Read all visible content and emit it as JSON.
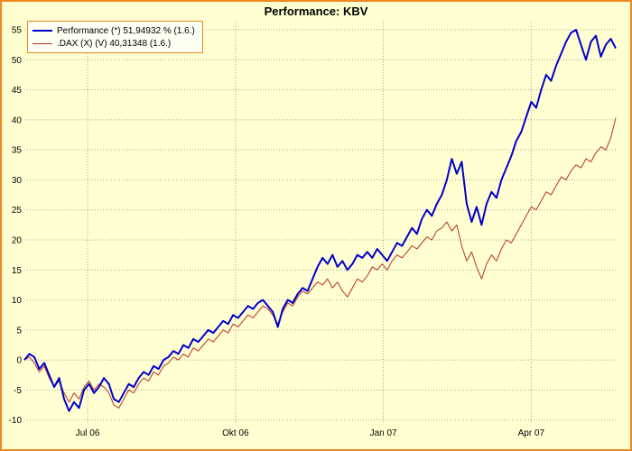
{
  "title": "Performance: KBV",
  "colors": {
    "background": "#FFFFD2",
    "border_orange": "#EE8822",
    "grid_gray": "#A0A0A0",
    "performance_blue": "#0000CC",
    "dax_red": "#BB3322",
    "legend_background": "#FFFFF4",
    "text_black": "#000000"
  },
  "legend": {
    "items": [
      {
        "label": "Performance (*) 51,94932 % (1.6.)",
        "color": "#0000CC",
        "thickness": 2
      },
      {
        "label": ".DAX (X) (V) 40,31348 (1.6.)",
        "color": "#BB3322",
        "thickness": 1
      }
    ]
  },
  "chart_data": {
    "type": "line",
    "title": "Performance: KBV",
    "xlabel": "",
    "ylabel": "",
    "grid": true,
    "legend_position": "top-left",
    "ylim": [
      -10.5,
      56.5
    ],
    "y_ticks": [
      55,
      50,
      45,
      40,
      35,
      30,
      25,
      20,
      15,
      10,
      5,
      0,
      -5,
      -10
    ],
    "x_tick_labels": [
      "Jul 06",
      "Okt 06",
      "Jan 07",
      "Apr 07"
    ],
    "x_tick_positions": [
      0.107,
      0.357,
      0.607,
      0.857
    ],
    "series": [
      {
        "name": "Performance",
        "end_value_label": "51,94932 % (1.6.)",
        "color": "#0000CC",
        "width": 2,
        "values": [
          0,
          1,
          0.5,
          -1.5,
          -0.5,
          -2.5,
          -4.5,
          -3,
          -6.5,
          -8.5,
          -7,
          -8,
          -5,
          -4,
          -5.5,
          -4.5,
          -3,
          -4,
          -6.5,
          -7,
          -5.5,
          -4,
          -4.5,
          -3,
          -2,
          -2.5,
          -1,
          -1.5,
          0,
          0.5,
          1.5,
          1,
          2.5,
          2,
          3.5,
          3,
          4,
          5,
          4.5,
          5.5,
          6.5,
          6,
          7.5,
          7,
          8,
          9,
          8.5,
          9.5,
          10,
          9,
          8,
          5.5,
          8.5,
          10,
          9.5,
          11,
          12,
          11.5,
          13.5,
          15.5,
          17,
          16,
          17.5,
          15.5,
          16.5,
          15,
          16,
          17.5,
          17,
          18,
          17,
          18.5,
          17.5,
          16.5,
          18,
          19.5,
          19,
          20.5,
          22,
          21,
          23.5,
          25,
          24,
          26,
          27.5,
          30,
          33.5,
          31,
          33,
          26,
          23,
          25.5,
          22.5,
          26,
          28,
          27,
          30,
          32,
          34,
          36.5,
          38,
          40.5,
          43,
          42,
          45,
          47.5,
          46.5,
          49,
          51,
          53,
          54.5,
          55,
          52.5,
          50,
          53,
          54,
          50.5,
          52.5,
          53.5,
          51.9
        ]
      },
      {
        "name": ".DAX",
        "end_value_label": "40,31348 (1.6.)",
        "color": "#BB3322",
        "width": 1,
        "values": [
          0,
          0.5,
          -0.5,
          -2,
          -1,
          -3,
          -4.5,
          -3.5,
          -5.5,
          -7,
          -5.5,
          -6.5,
          -4.5,
          -3.5,
          -5,
          -4,
          -4.5,
          -5.5,
          -7.5,
          -8,
          -6.5,
          -5,
          -5.5,
          -4,
          -3,
          -3.5,
          -2,
          -2.5,
          -1,
          -0.5,
          0.5,
          0,
          1,
          0.5,
          2,
          1.5,
          2.5,
          3.5,
          3,
          4,
          5,
          4.5,
          6,
          5.5,
          6.5,
          7.5,
          7,
          8,
          9,
          8.5,
          7.5,
          6,
          8,
          9.5,
          9,
          10.5,
          11.5,
          11,
          12,
          13,
          12.5,
          13.5,
          12,
          13,
          11.5,
          10.5,
          12,
          13.5,
          13,
          14,
          15.5,
          15,
          16,
          15,
          16.5,
          17.5,
          17,
          18,
          19,
          18.5,
          19.5,
          20.5,
          20,
          21.5,
          22,
          23,
          21.5,
          22.5,
          19,
          16.5,
          18,
          15.5,
          13.5,
          16,
          17.5,
          16.5,
          18.5,
          20,
          19.5,
          21,
          22.5,
          24,
          25.5,
          25,
          26.5,
          28,
          27.5,
          29,
          30.5,
          30,
          31.5,
          32.5,
          32,
          33.5,
          33,
          34.5,
          35.5,
          35,
          37,
          40.3
        ]
      }
    ]
  }
}
